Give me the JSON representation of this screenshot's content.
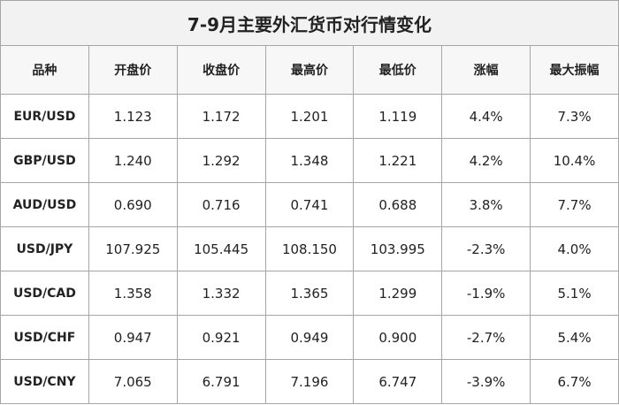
{
  "table": {
    "title": "7-9月主要外汇货币对行情变化",
    "columns": [
      "品种",
      "开盘价",
      "收盘价",
      "最高价",
      "最低价",
      "涨幅",
      "最大振幅"
    ],
    "rows": [
      [
        "EUR/USD",
        "1.123",
        "1.172",
        "1.201",
        "1.119",
        "4.4%",
        "7.3%"
      ],
      [
        "GBP/USD",
        "1.240",
        "1.292",
        "1.348",
        "1.221",
        "4.2%",
        "10.4%"
      ],
      [
        "AUD/USD",
        "0.690",
        "0.716",
        "0.741",
        "0.688",
        "3.8%",
        "7.7%"
      ],
      [
        "USD/JPY",
        "107.925",
        "105.445",
        "108.150",
        "103.995",
        "-2.3%",
        "4.0%"
      ],
      [
        "USD/CAD",
        "1.358",
        "1.332",
        "1.365",
        "1.299",
        "-1.9%",
        "5.1%"
      ],
      [
        "USD/CHF",
        "0.947",
        "0.921",
        "0.949",
        "0.900",
        "-2.7%",
        "5.4%"
      ],
      [
        "USD/CNY",
        "7.065",
        "6.791",
        "7.196",
        "6.747",
        "-3.9%",
        "6.7%"
      ]
    ]
  }
}
